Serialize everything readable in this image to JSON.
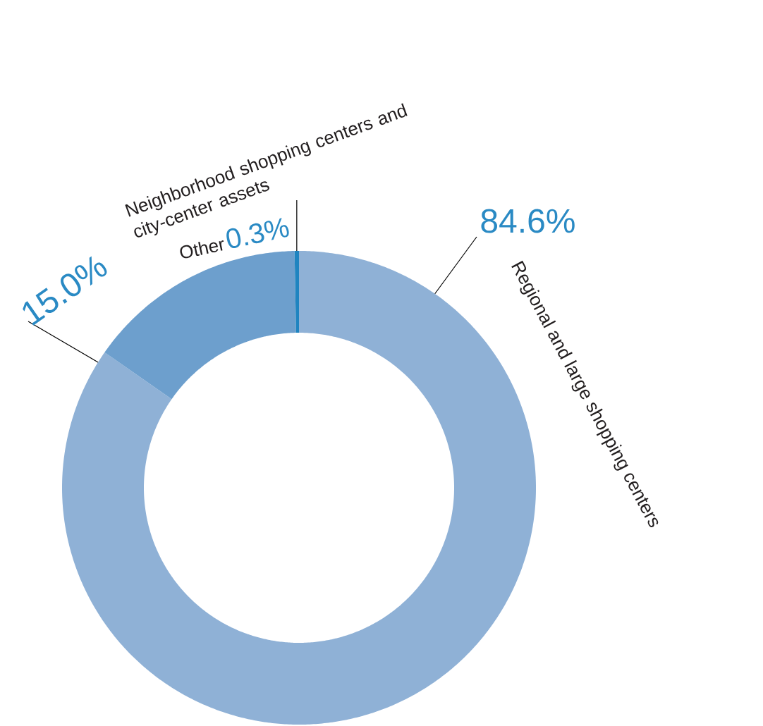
{
  "chart_data": {
    "type": "donut",
    "categories": [
      "Regional and large shopping centers",
      "Neighborhood shopping centers and city-center assets",
      "Other"
    ],
    "values": [
      84.6,
      15.0,
      0.3
    ],
    "colors": [
      "#8fb1d6",
      "#6d9fcd",
      "#1f84c0"
    ],
    "value_labels": [
      "84.6%",
      "15.0%",
      "0.3%"
    ]
  }
}
